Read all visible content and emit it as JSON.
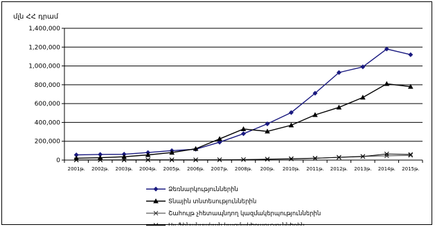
{
  "chart_data": {
    "type": "line",
    "ylabel": "մլն ՀՀ դրամ",
    "ylim": [
      0,
      1400000
    ],
    "yticks": [
      "0",
      "200,000",
      "400,000",
      "600,000",
      "800,000",
      "1,000,000",
      "1,200,000",
      "1,400,000"
    ],
    "ytick_values": [
      0,
      200000,
      400000,
      600000,
      800000,
      1000000,
      1200000,
      1400000
    ],
    "categories": [
      "2001թ.",
      "2002թ.",
      "2003թ.",
      "2004թ.",
      "2005թ.",
      "2006թ.",
      "2007թ.",
      "2008թ.",
      "200թ.",
      "2010թ.",
      "2011թ.",
      "2012թ.",
      "2013թ.",
      "2014թ.",
      "2015թ."
    ],
    "grid": true,
    "legend_position": "bottom",
    "series": [
      {
        "name": "Ձեռնարկություններին",
        "marker": "diamond",
        "color": "#1a1a80",
        "values": [
          55000,
          60000,
          62000,
          80000,
          100000,
          115000,
          190000,
          280000,
          385000,
          505000,
          710000,
          930000,
          990000,
          1180000,
          1120000
        ]
      },
      {
        "name": "Տնային տնտեսություններին",
        "marker": "triangle",
        "color": "#000000",
        "values": [
          20000,
          25000,
          35000,
          55000,
          80000,
          120000,
          225000,
          330000,
          305000,
          370000,
          480000,
          560000,
          665000,
          810000,
          780000
        ]
      },
      {
        "name": "Շահույթ չհետապնդող կազմակերպություններին",
        "marker": "x",
        "color": "#333333",
        "values": [
          2000,
          2000,
          3000,
          3000,
          3000,
          3000,
          4000,
          5000,
          8000,
          12000,
          18000,
          30000,
          40000,
          45000,
          50000
        ]
      },
      {
        "name": "Այլ ֆինանսական կազմակերպություններին",
        "marker": "x",
        "color": "#000000",
        "values": [
          1000,
          1000,
          1000,
          2000,
          2000,
          2000,
          3000,
          5000,
          10000,
          15000,
          20000,
          28000,
          38000,
          65000,
          60000
        ]
      }
    ]
  }
}
